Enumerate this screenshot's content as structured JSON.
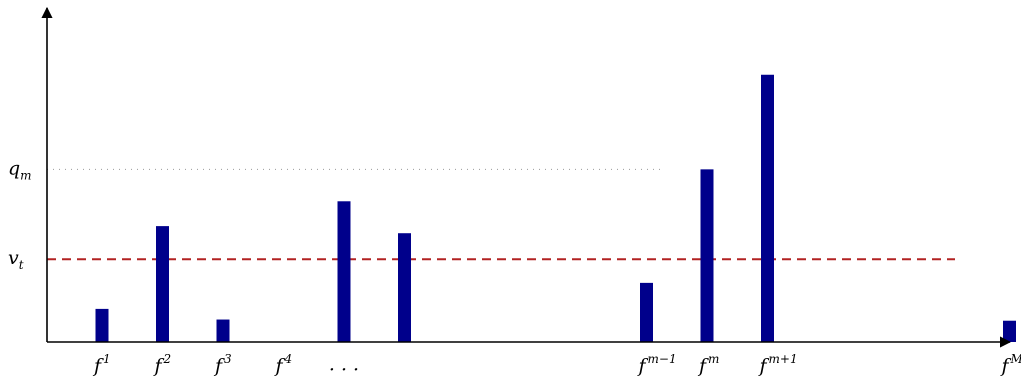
{
  "chart_data": {
    "type": "bar",
    "title": "",
    "xlabel": "",
    "ylabel": "",
    "ylim": [
      0,
      12
    ],
    "grid": false,
    "colors": {
      "bar": "#00008b",
      "threshold": "#b22222",
      "reference": "#999999",
      "axis": "#000000"
    },
    "categories": [
      {
        "base": "f",
        "sup": "1"
      },
      {
        "base": "f",
        "sup": "2"
      },
      {
        "base": "f",
        "sup": "3"
      },
      {
        "base": "f",
        "sup": "4"
      },
      {
        "base": "",
        "sup": "",
        "text": "· · ·"
      },
      {
        "base": "",
        "sup": ""
      },
      {
        "base": "",
        "sup": ""
      },
      {
        "base": "",
        "sup": ""
      },
      {
        "base": "",
        "sup": ""
      },
      {
        "base": "f",
        "sup": "m−1"
      },
      {
        "base": "f",
        "sup": "m"
      },
      {
        "base": "f",
        "sup": "m+1"
      },
      {
        "base": "",
        "sup": ""
      },
      {
        "base": "",
        "sup": ""
      },
      {
        "base": "",
        "sup": ""
      },
      {
        "base": "f",
        "sup": "M"
      }
    ],
    "values": [
      1.4,
      4.9,
      0.95,
      0,
      5.95,
      4.6,
      0,
      0,
      0,
      2.5,
      7.3,
      11.3,
      0,
      0,
      0,
      0.9
    ],
    "reference_lines": [
      {
        "name": "q",
        "sub": "m",
        "value": 7.3,
        "style": "dotted"
      },
      {
        "name": "v",
        "sub": "t",
        "value": 3.5,
        "style": "dashed"
      }
    ]
  }
}
